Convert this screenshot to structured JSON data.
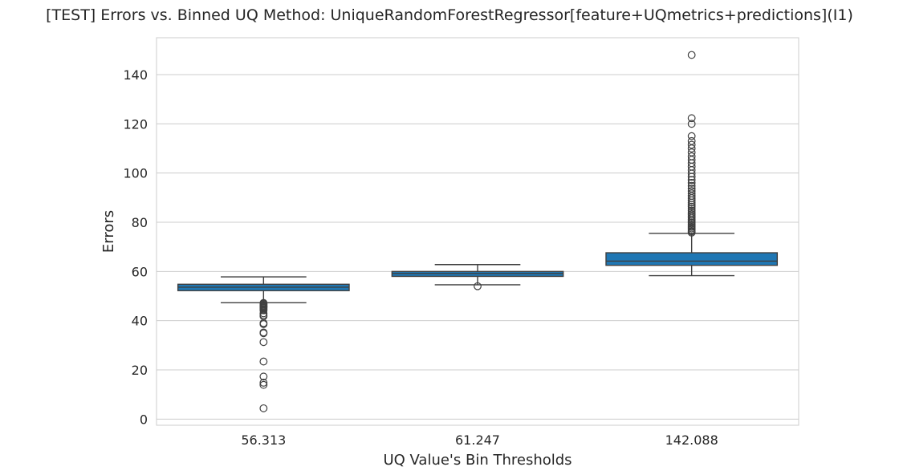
{
  "chart_data": {
    "type": "box",
    "title": "[TEST] Errors vs. Binned UQ Method: UniqueRandomForestRegressor[feature+UQmetrics+predictions](I1)",
    "xlabel": "UQ Value's Bin Thresholds",
    "ylabel": "Errors",
    "ylim": [
      -2.5,
      155
    ],
    "yticks": [
      0,
      20,
      40,
      60,
      80,
      100,
      120,
      140
    ],
    "grid": "horizontal",
    "box_color": "#1f77b4",
    "categories": [
      "56.313",
      "61.247",
      "142.088"
    ],
    "boxes": [
      {
        "category": "56.313",
        "q1": 52.2,
        "median": 53.6,
        "q3": 54.8,
        "whisker_low": 47.3,
        "whisker_high": 57.8,
        "outliers": [
          47.2,
          46.9,
          46.6,
          46.2,
          45.9,
          45.6,
          45.3,
          45.0,
          44.6,
          44.2,
          43.0,
          42.3,
          41.8,
          39.0,
          38.6,
          35.2,
          34.9,
          31.3,
          23.4,
          17.3,
          14.8,
          13.9,
          4.4
        ]
      },
      {
        "category": "61.247",
        "q1": 58.0,
        "median": 59.2,
        "q3": 60.0,
        "whisker_low": 54.6,
        "whisker_high": 62.8,
        "outliers": [
          54.0
        ]
      },
      {
        "category": "142.088",
        "q1": 62.5,
        "median": 64.2,
        "q3": 67.6,
        "whisker_low": 58.3,
        "whisker_high": 75.5,
        "outliers": [
          75.8,
          76.3,
          76.9,
          77.5,
          78.1,
          78.7,
          79.3,
          79.9,
          80.5,
          81.1,
          81.8,
          82.5,
          83.2,
          83.9,
          84.7,
          85.5,
          86.3,
          87.1,
          88.0,
          88.9,
          89.8,
          90.7,
          91.7,
          92.7,
          93.7,
          94.8,
          96.0,
          97.2,
          98.5,
          99.8,
          101.2,
          102.6,
          104.0,
          105.4,
          106.8,
          108.4,
          110.0,
          111.5,
          113.0,
          115.0,
          120.0,
          122.3,
          148.0
        ]
      }
    ]
  }
}
